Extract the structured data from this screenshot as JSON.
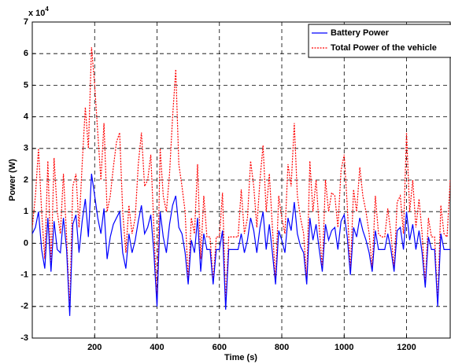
{
  "chart_data": {
    "type": "line",
    "multiplier": {
      "base": "x 10",
      "exponent": "4"
    },
    "xlabel": "Time (s)",
    "ylabel": "Power (W)",
    "xlim": [
      0,
      1340
    ],
    "xticks": [
      200,
      400,
      600,
      800,
      1000,
      1200
    ],
    "ylim": [
      -3,
      7
    ],
    "yticks": [
      -3,
      -2,
      -1,
      0,
      1,
      2,
      3,
      4,
      5,
      6,
      7
    ],
    "grid": true,
    "legend": "upper right",
    "x": [
      0,
      10,
      20,
      30,
      40,
      50,
      60,
      70,
      80,
      90,
      100,
      110,
      120,
      130,
      140,
      150,
      160,
      170,
      180,
      190,
      200,
      210,
      220,
      230,
      240,
      250,
      260,
      270,
      280,
      290,
      300,
      310,
      320,
      330,
      340,
      350,
      360,
      370,
      380,
      390,
      400,
      410,
      420,
      430,
      440,
      450,
      460,
      470,
      480,
      490,
      500,
      510,
      520,
      530,
      540,
      550,
      560,
      570,
      580,
      590,
      600,
      610,
      620,
      630,
      640,
      650,
      660,
      670,
      680,
      690,
      700,
      710,
      720,
      730,
      740,
      750,
      760,
      770,
      780,
      790,
      800,
      810,
      820,
      830,
      840,
      850,
      860,
      870,
      880,
      890,
      900,
      910,
      920,
      930,
      940,
      950,
      960,
      970,
      980,
      990,
      1000,
      1010,
      1020,
      1030,
      1040,
      1050,
      1060,
      1070,
      1080,
      1090,
      1100,
      1110,
      1120,
      1130,
      1140,
      1150,
      1160,
      1170,
      1180,
      1190,
      1200,
      1210,
      1220,
      1230,
      1240,
      1250,
      1260,
      1270,
      1280,
      1290,
      1300,
      1310,
      1320,
      1330,
      1340
    ],
    "series": [
      {
        "name": "Battery Power",
        "color": "#0000ff",
        "dash": "solid",
        "values": [
          0.3,
          0.5,
          1.0,
          -0.2,
          -0.8,
          0.8,
          -0.9,
          0.7,
          -0.2,
          -0.3,
          0.8,
          -0.2,
          -2.3,
          0.6,
          0.9,
          -0.3,
          0.7,
          1.4,
          0.2,
          2.2,
          1.5,
          0.8,
          0.3,
          1.1,
          -0.5,
          0.2,
          0.6,
          0.8,
          1.0,
          -0.3,
          -0.8,
          0.3,
          -0.3,
          0.1,
          0.7,
          1.2,
          0.3,
          0.5,
          0.9,
          -0.3,
          -2.0,
          1.0,
          0.2,
          -0.3,
          0.6,
          1.2,
          1.5,
          0.5,
          0.3,
          -0.3,
          -1.3,
          0.1,
          -0.3,
          0.8,
          -0.9,
          0.3,
          -0.2,
          -0.2,
          -1.3,
          -0.2,
          -0.2,
          0.4,
          -2.1,
          -0.2,
          -0.2,
          -0.2,
          -0.2,
          0.3,
          -0.3,
          0.1,
          0.8,
          0.4,
          -0.3,
          0.5,
          1.0,
          -0.2,
          0.6,
          -0.3,
          -1.3,
          0.4,
          0.1,
          -0.3,
          0.8,
          0.4,
          1.3,
          0.3,
          -0.1,
          -0.3,
          -1.3,
          0.8,
          0.1,
          0.6,
          -0.2,
          -0.9,
          0.6,
          0.1,
          0.4,
          0.5,
          -0.2,
          0.7,
          0.9,
          0.2,
          -1.0,
          0.5,
          0.2,
          0.8,
          0.4,
          0.1,
          -0.3,
          -0.9,
          0.4,
          -0.2,
          -0.2,
          -0.2,
          0.3,
          -0.2,
          -0.9,
          0.4,
          0.5,
          -0.2,
          1.0,
          0.1,
          0.6,
          -0.2,
          0.4,
          -0.3,
          -1.4,
          0.2,
          -0.2,
          -0.2,
          -2.0,
          0.3,
          -0.2,
          -0.2,
          -0.2
        ]
      },
      {
        "name": "Total Power of the vehicle",
        "color": "#ff0000",
        "dash": "dotted",
        "values": [
          0.5,
          1.5,
          3.0,
          1.0,
          -0.5,
          2.6,
          -0.8,
          2.7,
          1.0,
          0.3,
          2.2,
          0.2,
          -2.1,
          1.8,
          2.2,
          0.5,
          2.5,
          4.3,
          3.0,
          6.2,
          5.0,
          3.5,
          2.0,
          3.8,
          1.0,
          1.5,
          2.4,
          3.2,
          3.5,
          1.0,
          -0.3,
          1.2,
          0.3,
          0.8,
          2.5,
          3.5,
          1.8,
          2.0,
          2.8,
          0.5,
          -1.9,
          3.0,
          1.5,
          1.0,
          2.2,
          4.0,
          5.5,
          2.5,
          1.8,
          1.0,
          -1.2,
          0.8,
          0.3,
          2.5,
          -0.5,
          1.5,
          0.2,
          0.2,
          -1.2,
          0.2,
          0.2,
          1.6,
          -1.9,
          0.2,
          0.2,
          0.2,
          0.2,
          1.7,
          0.3,
          0.8,
          2.6,
          1.8,
          0.5,
          2.0,
          3.1,
          1.0,
          2.2,
          0.5,
          -1.2,
          1.5,
          0.8,
          0.3,
          2.5,
          1.8,
          3.8,
          1.5,
          0.8,
          0.3,
          -1.2,
          2.6,
          1.0,
          2.0,
          0.5,
          -0.8,
          2.0,
          1.0,
          1.6,
          1.5,
          0.5,
          2.3,
          2.8,
          1.2,
          -0.9,
          1.7,
          1.0,
          2.4,
          1.5,
          1.0,
          0.3,
          -0.8,
          1.5,
          0.3,
          0.2,
          0.2,
          1.1,
          0.3,
          -0.8,
          1.3,
          1.5,
          0.3,
          3.5,
          1.0,
          2.0,
          0.5,
          1.4,
          0.3,
          -1.3,
          0.8,
          0.2,
          0.2,
          -1.9,
          1.2,
          0.3,
          0.2,
          2.0
        ]
      }
    ]
  }
}
